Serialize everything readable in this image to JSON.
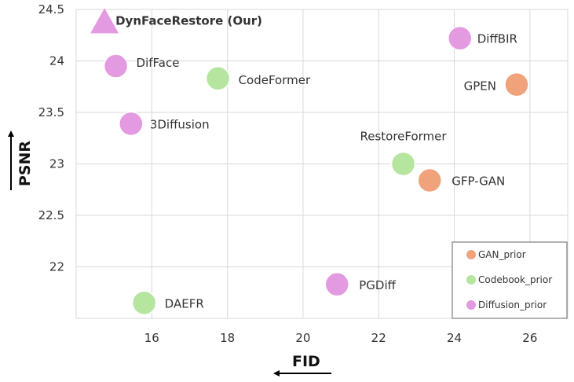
{
  "chart_data": {
    "type": "scatter",
    "xlabel": "FID",
    "ylabel": "PSNR",
    "xlim": [
      14,
      27
    ],
    "ylim": [
      21.5,
      24.5
    ],
    "xticks": [
      "16",
      "18",
      "20",
      "22",
      "24",
      "26"
    ],
    "yticks": [
      "22",
      "22.5",
      "23",
      "23.5",
      "24",
      "24.5"
    ],
    "grid": true,
    "legend_position": "bottom-right",
    "legend": [
      {
        "name": "GAN_prior",
        "color": "#f0a27a"
      },
      {
        "name": "Codebook_prior",
        "color": "#b6e5a0"
      },
      {
        "name": "Diffusion_prior",
        "color": "#e39ae0"
      }
    ],
    "points": [
      {
        "label": "DynFaceRestore (Our)",
        "x": 14.75,
        "y": 24.36,
        "group": "Diffusion_prior",
        "marker": "triangle",
        "emphasis": true
      },
      {
        "label": "DiffBIR",
        "x": 24.15,
        "y": 24.22,
        "group": "Diffusion_prior"
      },
      {
        "label": "DifFace",
        "x": 15.05,
        "y": 23.95,
        "group": "Diffusion_prior"
      },
      {
        "label": "CodeFormer",
        "x": 17.75,
        "y": 23.83,
        "group": "Codebook_prior"
      },
      {
        "label": "GPEN",
        "x": 25.65,
        "y": 23.77,
        "group": "GAN_prior"
      },
      {
        "label": "3Diffusion",
        "x": 15.45,
        "y": 23.39,
        "group": "Diffusion_prior"
      },
      {
        "label": "RestoreFormer",
        "x": 22.65,
        "y": 23.0,
        "group": "Codebook_prior"
      },
      {
        "label": "GFP-GAN",
        "x": 23.35,
        "y": 22.84,
        "group": "GAN_prior"
      },
      {
        "label": "PGDiff",
        "x": 20.9,
        "y": 21.83,
        "group": "Diffusion_prior"
      },
      {
        "label": "DAEFR",
        "x": 15.8,
        "y": 21.65,
        "group": "Codebook_prior"
      }
    ]
  }
}
